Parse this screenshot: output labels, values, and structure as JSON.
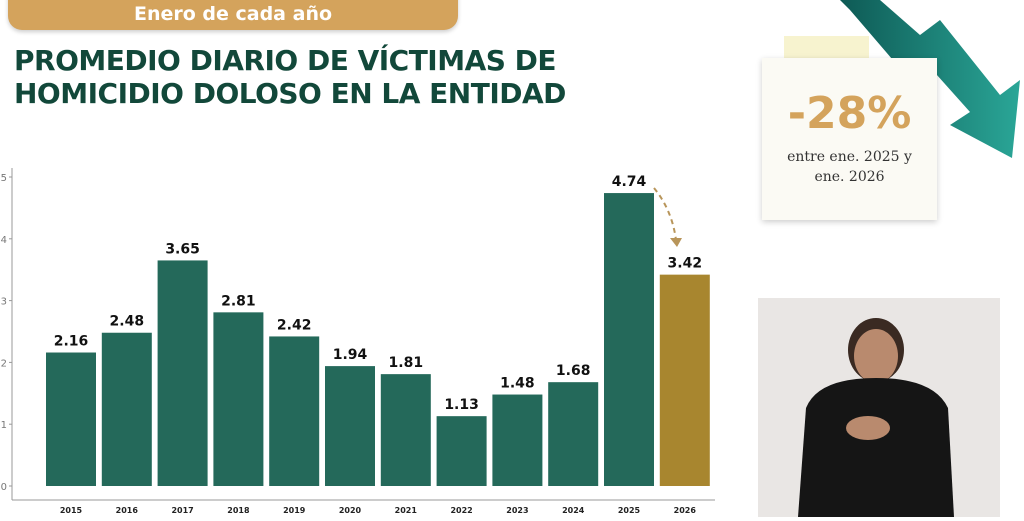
{
  "banner": "Enero de cada año",
  "title_line1": "PROMEDIO DIARIO DE VÍCTIMAS DE",
  "title_line2": "HOMICIDIO DOLOSO EN LA ENTIDAD",
  "callout": {
    "value": "-28%",
    "line1": "entre ene. 2025 y",
    "line2": "ene. 2026"
  },
  "colors": {
    "bar": "#24695a",
    "highlight": "#a8862f",
    "arrow": "#1b7a6e"
  },
  "chart_data": {
    "type": "bar",
    "title": "PROMEDIO DIARIO DE VÍCTIMAS DE HOMICIDIO DOLOSO EN LA ENTIDAD",
    "categories": [
      "2015",
      "2016",
      "2017",
      "2018",
      "2019",
      "2020",
      "2021",
      "2022",
      "2023",
      "2024",
      "2025",
      "2026"
    ],
    "values": [
      2.16,
      2.48,
      3.65,
      2.81,
      2.42,
      1.94,
      1.81,
      1.13,
      1.48,
      1.68,
      4.74,
      3.42
    ],
    "labels": [
      "2.16",
      "2.48",
      "3.65",
      "2.81",
      "2.42",
      "1.94",
      "1.81",
      "1.13",
      "1.48",
      "1.68",
      "4.74",
      "3.42"
    ],
    "ylim": [
      0,
      5
    ],
    "yticks": [
      "0",
      "1",
      "2",
      "3",
      "4",
      "5"
    ],
    "xlabel": "",
    "ylabel": "",
    "grid": false
  }
}
